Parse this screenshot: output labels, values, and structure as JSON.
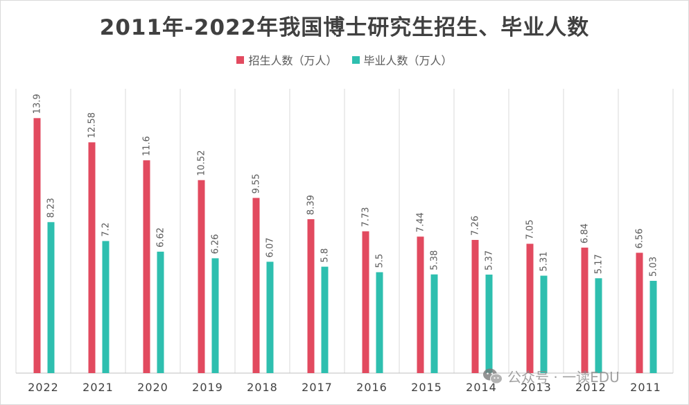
{
  "chart_data": {
    "type": "bar",
    "title": "2011年-2022年我国博士研究生招生、毕业人数",
    "categories": [
      "2022",
      "2021",
      "2020",
      "2019",
      "2018",
      "2017",
      "2016",
      "2015",
      "2014",
      "2013",
      "2012",
      "2011"
    ],
    "series": [
      {
        "name": "招生人数（万人）",
        "color": "#e24a5f",
        "values": [
          13.9,
          12.58,
          11.6,
          10.52,
          9.55,
          8.39,
          7.73,
          7.44,
          7.26,
          7.05,
          6.84,
          6.56
        ]
      },
      {
        "name": "毕业人数（万人）",
        "color": "#2ebfaf",
        "values": [
          8.23,
          7.2,
          6.62,
          6.26,
          6.07,
          5.8,
          5.5,
          5.38,
          5.37,
          5.31,
          5.17,
          5.03
        ]
      }
    ],
    "ylim": [
      0,
      15.5
    ],
    "grid": "vertical-category-separators",
    "legend_position": "top"
  },
  "watermark": {
    "icon": "wechat-icon",
    "text": "公众号 · 一读EDU"
  }
}
